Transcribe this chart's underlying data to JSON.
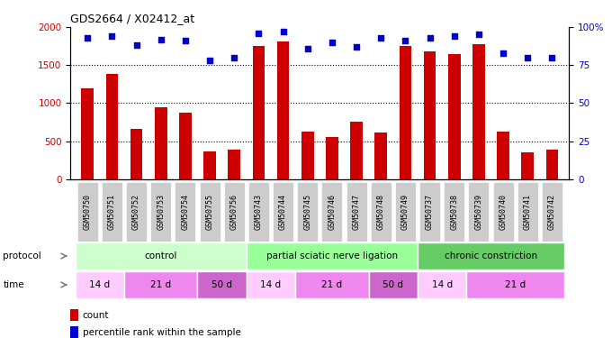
{
  "title": "GDS2664 / X02412_at",
  "samples": [
    "GSM50750",
    "GSM50751",
    "GSM50752",
    "GSM50753",
    "GSM50754",
    "GSM50755",
    "GSM50756",
    "GSM50743",
    "GSM50744",
    "GSM50745",
    "GSM50746",
    "GSM50747",
    "GSM50748",
    "GSM50749",
    "GSM50737",
    "GSM50738",
    "GSM50739",
    "GSM50740",
    "GSM50741",
    "GSM50742"
  ],
  "counts": [
    1200,
    1380,
    660,
    950,
    870,
    360,
    390,
    1750,
    1810,
    620,
    560,
    760,
    610,
    1750,
    1680,
    1650,
    1770,
    630,
    350,
    390
  ],
  "percentiles": [
    93,
    94,
    88,
    92,
    91,
    78,
    80,
    96,
    97,
    86,
    90,
    87,
    93,
    91,
    93,
    94,
    95,
    83,
    80,
    80
  ],
  "bar_color": "#cc0000",
  "dot_color": "#0000cc",
  "ylim_left": [
    0,
    2000
  ],
  "ylim_right": [
    0,
    100
  ],
  "yticks_left": [
    0,
    500,
    1000,
    1500,
    2000
  ],
  "yticks_right": [
    0,
    25,
    50,
    75,
    100
  ],
  "ytick_labels_right": [
    "0",
    "25",
    "50",
    "75",
    "100%"
  ],
  "grid_values": [
    500,
    1000,
    1500
  ],
  "protocol_groups": [
    {
      "label": "control",
      "start": 0,
      "end": 6,
      "color": "#ccffcc"
    },
    {
      "label": "partial sciatic nerve ligation",
      "start": 7,
      "end": 13,
      "color": "#99ff99"
    },
    {
      "label": "chronic constriction",
      "start": 14,
      "end": 19,
      "color": "#66cc66"
    }
  ],
  "time_groups": [
    {
      "label": "14 d",
      "start": 0,
      "end": 1,
      "color": "#ffccff"
    },
    {
      "label": "21 d",
      "start": 2,
      "end": 4,
      "color": "#ee88ee"
    },
    {
      "label": "50 d",
      "start": 5,
      "end": 6,
      "color": "#cc66cc"
    },
    {
      "label": "14 d",
      "start": 7,
      "end": 8,
      "color": "#ffccff"
    },
    {
      "label": "21 d",
      "start": 9,
      "end": 11,
      "color": "#ee88ee"
    },
    {
      "label": "50 d",
      "start": 12,
      "end": 13,
      "color": "#cc66cc"
    },
    {
      "label": "14 d",
      "start": 14,
      "end": 15,
      "color": "#ffccff"
    },
    {
      "label": "21 d",
      "start": 16,
      "end": 19,
      "color": "#ee88ee"
    }
  ],
  "protocol_label": "protocol",
  "time_label": "time",
  "legend_count": "count",
  "legend_percentile": "percentile rank within the sample",
  "bg_color": "#ffffff",
  "tick_label_bg": "#cccccc",
  "bar_width": 0.5
}
